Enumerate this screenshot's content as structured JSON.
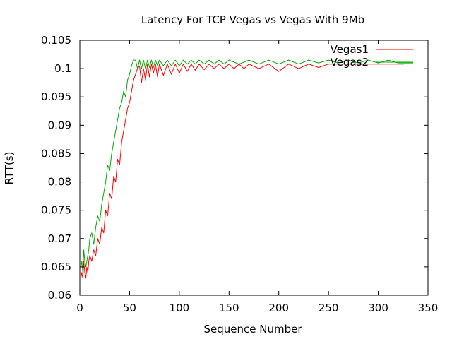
{
  "chart_data": {
    "type": "line",
    "title": "Latency For TCP Vegas vs Vegas With 9Mb",
    "xlabel": "Sequence Number",
    "ylabel": "RTT(s)",
    "xlim": [
      0,
      350
    ],
    "ylim": [
      0.06,
      0.105
    ],
    "xticks": [
      0,
      50,
      100,
      150,
      200,
      250,
      300,
      350
    ],
    "xtick_labels": [
      "0",
      "50",
      "100",
      "150",
      "200",
      "250",
      "300",
      "350"
    ],
    "yticks": [
      0.06,
      0.065,
      0.07,
      0.075,
      0.08,
      0.085,
      0.09,
      0.095,
      0.1,
      0.105
    ],
    "ytick_labels": [
      "0.06",
      "0.065",
      "0.07",
      "0.075",
      "0.08",
      "0.085",
      "0.09",
      "0.095",
      "0.1",
      "0.105"
    ],
    "grid": false,
    "legend_position": "top-right",
    "series": [
      {
        "name": "Vegas1",
        "color": "#ff0000",
        "x": [
          1,
          2,
          3,
          4,
          5,
          6,
          7,
          8,
          9,
          10,
          12,
          14,
          16,
          18,
          20,
          22,
          24,
          26,
          28,
          30,
          32,
          34,
          36,
          38,
          40,
          42,
          44,
          46,
          48,
          50,
          52,
          54,
          56,
          58,
          60,
          62,
          64,
          66,
          68,
          70,
          72,
          74,
          76,
          78,
          80,
          84,
          88,
          92,
          96,
          100,
          104,
          108,
          112,
          116,
          120,
          125,
          130,
          135,
          140,
          145,
          150,
          155,
          160,
          165,
          170,
          180,
          190,
          200,
          210,
          220,
          230,
          240,
          250,
          260,
          270,
          280,
          290,
          300,
          310,
          320,
          326
        ],
        "y": [
          0.063,
          0.064,
          0.063,
          0.066,
          0.064,
          0.063,
          0.065,
          0.064,
          0.066,
          0.067,
          0.066,
          0.068,
          0.067,
          0.07,
          0.069,
          0.072,
          0.071,
          0.075,
          0.074,
          0.078,
          0.077,
          0.081,
          0.08,
          0.084,
          0.083,
          0.087,
          0.089,
          0.091,
          0.093,
          0.094,
          0.096,
          0.098,
          0.099,
          0.1,
          0.1005,
          0.0975,
          0.1,
          0.098,
          0.1008,
          0.0985,
          0.1008,
          0.0992,
          0.1008,
          0.0985,
          0.1008,
          0.0988,
          0.1008,
          0.099,
          0.1008,
          0.0992,
          0.1008,
          0.0995,
          0.1008,
          0.0997,
          0.1008,
          0.0998,
          0.1008,
          0.1,
          0.1008,
          0.1,
          0.1008,
          0.1,
          0.1008,
          0.1,
          0.1008,
          0.1,
          0.1008,
          0.0995,
          0.1008,
          0.1,
          0.1008,
          0.1002,
          0.1008,
          0.1008,
          0.1008,
          0.1008,
          0.1008,
          0.1008,
          0.1008,
          0.1008,
          0.1008
        ]
      },
      {
        "name": "Vegas2",
        "color": "#00aa00",
        "x": [
          1,
          2,
          3,
          4,
          5,
          6,
          7,
          8,
          9,
          10,
          12,
          14,
          16,
          18,
          20,
          22,
          24,
          26,
          28,
          30,
          32,
          34,
          36,
          38,
          40,
          42,
          44,
          46,
          48,
          50,
          52,
          54,
          56,
          58,
          60,
          62,
          64,
          66,
          68,
          70,
          72,
          74,
          76,
          78,
          80,
          84,
          88,
          92,
          96,
          100,
          104,
          108,
          112,
          116,
          120,
          125,
          130,
          135,
          140,
          145,
          150,
          160,
          170,
          180,
          190,
          200,
          210,
          220,
          230,
          240,
          250,
          260,
          270,
          280,
          290,
          300,
          310,
          320,
          330,
          335
        ],
        "y": [
          0.065,
          0.066,
          0.064,
          0.068,
          0.066,
          0.065,
          0.066,
          0.067,
          0.068,
          0.07,
          0.071,
          0.069,
          0.072,
          0.074,
          0.073,
          0.076,
          0.078,
          0.08,
          0.083,
          0.082,
          0.085,
          0.087,
          0.089,
          0.091,
          0.093,
          0.094,
          0.096,
          0.095,
          0.098,
          0.099,
          0.1005,
          0.1015,
          0.1015,
          0.1,
          0.1015,
          0.1,
          0.1015,
          0.1,
          0.1015,
          0.1002,
          0.1015,
          0.1002,
          0.1015,
          0.1005,
          0.1015,
          0.1005,
          0.1015,
          0.1005,
          0.1015,
          0.1005,
          0.1015,
          0.1008,
          0.1015,
          0.1008,
          0.1015,
          0.1008,
          0.1015,
          0.1008,
          0.1015,
          0.1008,
          0.1015,
          0.1008,
          0.1015,
          0.1008,
          0.1015,
          0.1008,
          0.1015,
          0.1008,
          0.1015,
          0.101,
          0.1015,
          0.101,
          0.1015,
          0.101,
          0.1015,
          0.101,
          0.1015,
          0.101,
          0.101,
          0.101
        ]
      }
    ]
  }
}
